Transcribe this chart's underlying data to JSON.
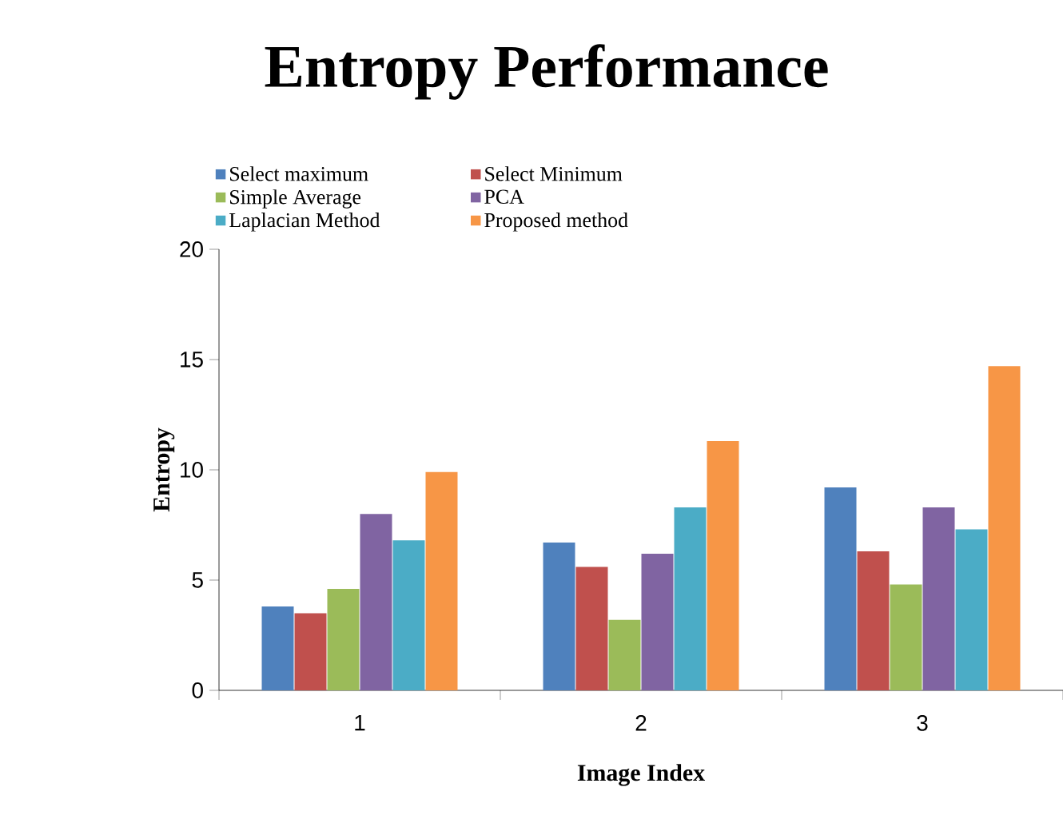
{
  "chart_data": {
    "type": "bar",
    "title": "Entropy Performance",
    "xlabel": "Image Index",
    "ylabel": "Entropy",
    "categories": [
      "1",
      "2",
      "3"
    ],
    "series": [
      {
        "name": "Select maximum",
        "color": "#4f81bd",
        "values": [
          3.8,
          6.7,
          9.2
        ]
      },
      {
        "name": "Select Minimum",
        "color": "#c0504d",
        "values": [
          3.5,
          5.6,
          6.3
        ]
      },
      {
        "name": "Simple Average",
        "color": "#9bbb59",
        "values": [
          4.6,
          3.2,
          4.8
        ]
      },
      {
        "name": "PCA",
        "color": "#8064a2",
        "values": [
          8.0,
          6.2,
          8.3
        ]
      },
      {
        "name": "Laplacian Method",
        "color": "#4bacc6",
        "values": [
          6.8,
          8.3,
          7.3
        ]
      },
      {
        "name": "Proposed method",
        "color": "#f79646",
        "values": [
          9.9,
          11.3,
          14.7
        ]
      }
    ],
    "ylim": [
      0,
      20
    ],
    "yticks": [
      0,
      5,
      10,
      15,
      20
    ],
    "grid": false,
    "legend": "top"
  }
}
